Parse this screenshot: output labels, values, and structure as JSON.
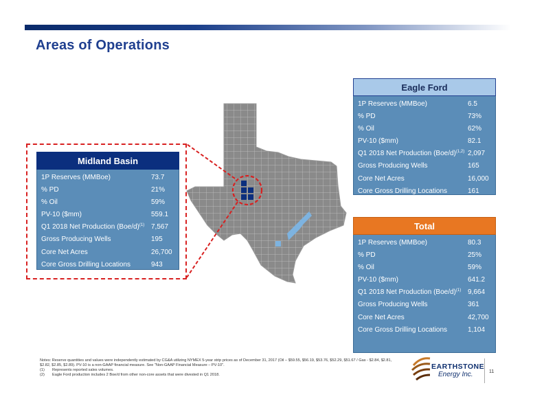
{
  "title": "Areas of Operations",
  "eagle_ford": {
    "title": "Eagle Ford",
    "rows": [
      {
        "label": "1P Reserves (MMBoe)",
        "sup": "",
        "value": "6.5"
      },
      {
        "label": "% PD",
        "sup": "",
        "value": "73%"
      },
      {
        "label": "% Oil",
        "sup": "",
        "value": "62%"
      },
      {
        "label": "PV-10 ($mm)",
        "sup": "",
        "value": "82.1"
      },
      {
        "label": "Q1 2018 Net Production (Boe/d)",
        "sup": "(1,2)",
        "value": "2,097"
      },
      {
        "label": "Gross Producing Wells",
        "sup": "",
        "value": "165"
      },
      {
        "label": "Core Net Acres",
        "sup": "",
        "value": "16,000"
      },
      {
        "label": "Core Gross Drilling Locations",
        "sup": "",
        "value": "161"
      }
    ]
  },
  "midland_basin": {
    "title": "Midland Basin",
    "rows": [
      {
        "label": "1P Reserves (MMBoe)",
        "sup": "",
        "value": "73.7"
      },
      {
        "label": "% PD",
        "sup": "",
        "value": "21%"
      },
      {
        "label": "% Oil",
        "sup": "",
        "value": "59%"
      },
      {
        "label": "PV-10 ($mm)",
        "sup": "",
        "value": "559.1"
      },
      {
        "label": "Q1 2018 Net Production (Boe/d)",
        "sup": "(1)",
        "value": "7,567"
      },
      {
        "label": "Gross Producing Wells",
        "sup": "",
        "value": "195"
      },
      {
        "label": "Core Net Acres",
        "sup": "",
        "value": "26,700"
      },
      {
        "label": "Core Gross Drilling Locations",
        "sup": "",
        "value": "943"
      }
    ]
  },
  "total": {
    "title": "Total",
    "rows": [
      {
        "label": "1P Reserves (MMBoe)",
        "sup": "",
        "value": "80.3"
      },
      {
        "label": "% PD",
        "sup": "",
        "value": "25%"
      },
      {
        "label": "% Oil",
        "sup": "",
        "value": "59%"
      },
      {
        "label": "PV-10 ($mm)",
        "sup": "",
        "value": "641.2"
      },
      {
        "label": "Q1 2018 Net Production (Boe/d)",
        "sup": "(1)",
        "value": "9,664"
      },
      {
        "label": "Gross Producing Wells",
        "sup": "",
        "value": "361"
      },
      {
        "label": "Core Net Acres",
        "sup": "",
        "value": "42,700"
      },
      {
        "label": "Core Gross Drilling Locations",
        "sup": "",
        "value": "1,104"
      }
    ]
  },
  "notes": {
    "main": "Notes: Reserve quantities and values were independently estimated by CG&A utilizing NYMEX 5-year strip prices as of December 31, 2017 (Oil – $59.55, $56.19, $53.76, $52.29, $51.67 / Gas - $2.84, $2.81, $2.82, $2.85, $2.89). PV-10 is a non-GAAP financial measure. See \"Non-GAAP Financial Measure – PV-10\".",
    "items": [
      {
        "num": "(1)",
        "text": "Represents reported sales volumes."
      },
      {
        "num": "(2)",
        "text": "Eagle Ford production includes 2 Boe/d from other non-core assets that were divested in Q1 2018."
      }
    ]
  },
  "logo": {
    "name": "EARTHSTONE",
    "sub": "Energy Inc."
  },
  "page_number": "11",
  "colors": {
    "title_blue": "#1f3f8f",
    "panel_body": "#5b8db8",
    "eagle_head": "#a9c9e9",
    "midland_head": "#0b2f7e",
    "total_head": "#e87722",
    "dash_red": "#d82020",
    "map_gray": "#8a8a8a"
  }
}
